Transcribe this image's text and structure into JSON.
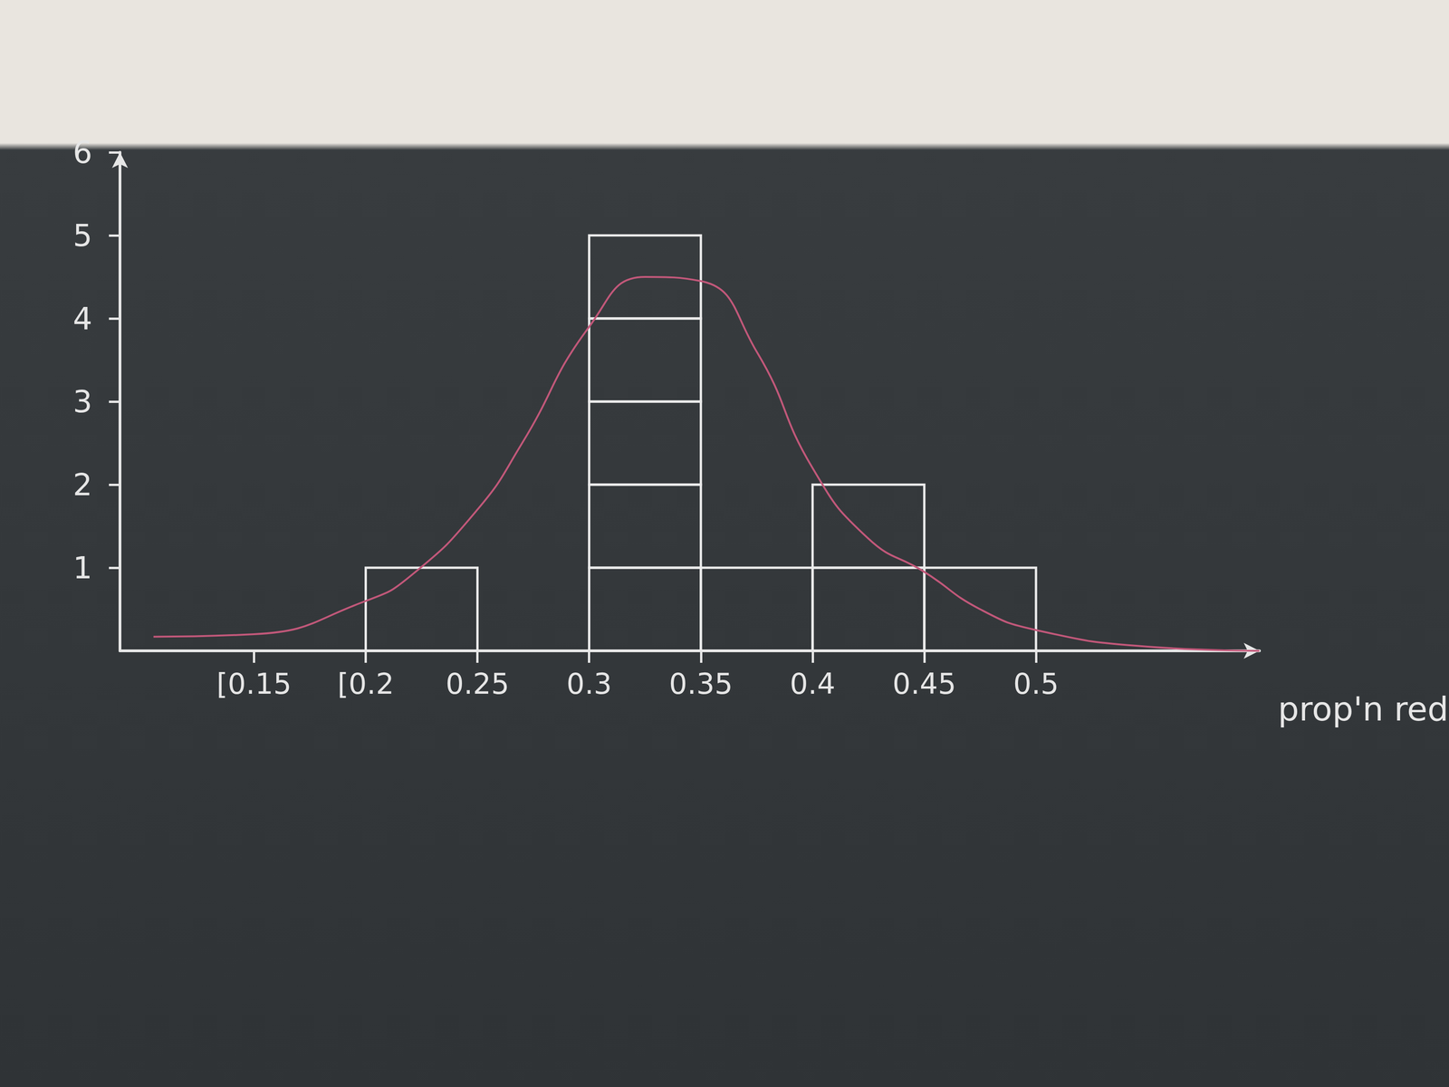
{
  "chart_data": {
    "type": "histogram",
    "bins": [
      0.2,
      0.25,
      0.3,
      0.35,
      0.4,
      0.45,
      0.5
    ],
    "counts": [
      1,
      0,
      5,
      1,
      2,
      1
    ],
    "color": "#ececec",
    "xlabel": "prop'n red",
    "xlim": [
      0.09,
      0.6
    ],
    "xticks": [
      {
        "value": 0.15,
        "label": "[0.15"
      },
      {
        "value": 0.2,
        "label": "[0.2"
      },
      0.25,
      0.3,
      0.35,
      0.4,
      0.45,
      0.5
    ],
    "ylim": [
      0,
      6
    ],
    "yticks": [
      1,
      2,
      3,
      4,
      5,
      6
    ],
    "grid": false,
    "curve": {
      "type": "line",
      "color": "#c2587a",
      "x": [
        0.105,
        0.15,
        0.2,
        0.22,
        0.25,
        0.27,
        0.3,
        0.325,
        0.35,
        0.375,
        0.4,
        0.425,
        0.45,
        0.475,
        0.5,
        0.55,
        0.6
      ],
      "values": [
        0.17,
        0.2,
        0.6,
        0.9,
        1.7,
        2.5,
        3.9,
        4.5,
        4.45,
        3.6,
        2.2,
        1.35,
        0.95,
        0.5,
        0.25,
        0.05,
        0.0
      ]
    }
  }
}
